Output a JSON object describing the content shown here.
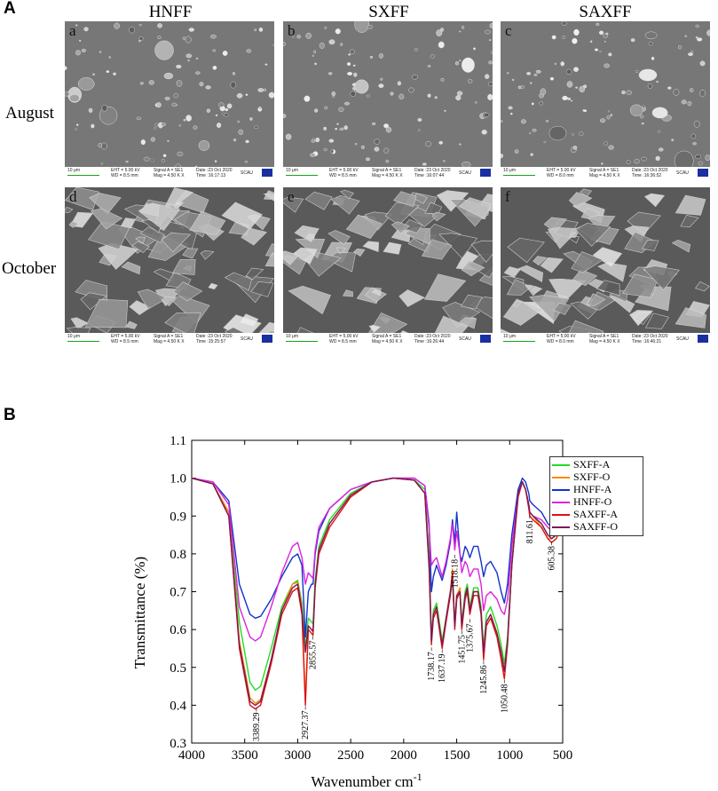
{
  "panel_a": {
    "letter": "A",
    "columns": [
      "HNFF",
      "SXFF",
      "SAXFF"
    ],
    "rows": [
      "August",
      "October"
    ],
    "images": [
      {
        "sub": "a",
        "scale": "10 μm",
        "eht": "EHT = 5.00 kV",
        "wd": "WD = 8.5 mm",
        "signal": "Signal A = SE1",
        "mag": "Mag = 4.50 K X",
        "date": "Date :23 Oct 2020",
        "time": "Time :16:17:13",
        "inst": "SCAU"
      },
      {
        "sub": "b",
        "scale": "10 μm",
        "eht": "EHT = 5.00 kV",
        "wd": "WD = 8.5 mm",
        "signal": "Signal A = SE1",
        "mag": "Mag = 4.50 K X",
        "date": "Date :23 Oct 2020",
        "time": "Time :16:07:44",
        "inst": "SCAU"
      },
      {
        "sub": "c",
        "scale": "10 μm",
        "eht": "EHT = 5.00 kV",
        "wd": "WD = 8.0 mm",
        "signal": "Signal A = SE1",
        "mag": "Mag = 4.50 K X",
        "date": "Date :23 Oct 2020",
        "time": "Time :16:36:52",
        "inst": "SCAU"
      },
      {
        "sub": "d",
        "scale": "10 μm",
        "eht": "EHT = 5.00 kV",
        "wd": "WD = 8.5 mm",
        "signal": "Signal A = SE1",
        "mag": "Mag = 4.50 K X",
        "date": "Date :23 Oct 2020",
        "time": "Time :15:25:57",
        "inst": "SCAU"
      },
      {
        "sub": "e",
        "scale": "10 μm",
        "eht": "EHT = 5.00 kV",
        "wd": "WD = 8.5 mm",
        "signal": "Signal A = SE1",
        "mag": "Mag = 4.50 K X",
        "date": "Date :23 Oct 2020",
        "time": "Time :16:26:44",
        "inst": "SCAU"
      },
      {
        "sub": "f",
        "scale": "10 μm",
        "eht": "EHT = 5.00 kV",
        "wd": "WD = 8.0 mm",
        "signal": "Signal A = SE1",
        "mag": "Mag = 4.50 K X",
        "date": "Date :23 Oct 2020",
        "time": "Time :16:46:21",
        "inst": "SCAU"
      }
    ]
  },
  "panel_b": {
    "letter": "B"
  },
  "chart_data": {
    "type": "line",
    "xlabel": "Wavenumber cm",
    "xlabel_sup": "-1",
    "ylabel": "Transmittance (%)",
    "xlim": [
      4000,
      500
    ],
    "ylim": [
      0.3,
      1.1
    ],
    "xticks": [
      4000,
      3500,
      3000,
      2500,
      2000,
      1500,
      1000,
      500
    ],
    "yticks": [
      0.3,
      0.4,
      0.5,
      0.6,
      0.7,
      0.8,
      0.9,
      1.0,
      1.1
    ],
    "ytick_labels": [
      "0.3",
      "0.4",
      "0.5",
      "0.6",
      "0.7",
      "0.8",
      "0.9",
      "1.0",
      "1.1"
    ],
    "legend_position": "top-right",
    "x": [
      4000,
      3800,
      3650,
      3550,
      3450,
      3400,
      3350,
      3250,
      3150,
      3050,
      3000,
      2960,
      2927,
      2900,
      2870,
      2855,
      2835,
      2800,
      2700,
      2500,
      2300,
      2100,
      1900,
      1800,
      1760,
      1738,
      1720,
      1690,
      1637,
      1600,
      1560,
      1540,
      1518,
      1500,
      1470,
      1452,
      1420,
      1400,
      1376,
      1340,
      1300,
      1270,
      1246,
      1220,
      1180,
      1120,
      1080,
      1050,
      1020,
      980,
      920,
      880,
      850,
      820,
      811,
      780,
      700,
      640,
      605,
      560,
      520,
      500
    ],
    "series": [
      {
        "name": "SXFF-A",
        "color": "#22dd22",
        "values": [
          1.0,
          0.985,
          0.91,
          0.62,
          0.46,
          0.44,
          0.45,
          0.55,
          0.66,
          0.72,
          0.73,
          0.67,
          0.55,
          0.63,
          0.62,
          0.615,
          0.73,
          0.82,
          0.89,
          0.96,
          0.99,
          1.0,
          0.995,
          0.97,
          0.8,
          0.58,
          0.65,
          0.67,
          0.57,
          0.63,
          0.69,
          0.73,
          0.61,
          0.68,
          0.71,
          0.62,
          0.7,
          0.72,
          0.66,
          0.71,
          0.71,
          0.66,
          0.55,
          0.64,
          0.66,
          0.61,
          0.56,
          0.51,
          0.58,
          0.78,
          0.96,
          0.99,
          0.97,
          0.93,
          0.91,
          0.9,
          0.88,
          0.85,
          0.84,
          0.85,
          0.88,
          0.92
        ]
      },
      {
        "name": "SXFF-O",
        "color": "#ff8800",
        "values": [
          1.0,
          0.985,
          0.91,
          0.57,
          0.42,
          0.405,
          0.415,
          0.52,
          0.65,
          0.72,
          0.725,
          0.66,
          0.41,
          0.61,
          0.6,
          0.595,
          0.72,
          0.81,
          0.88,
          0.955,
          0.99,
          1.0,
          0.995,
          0.96,
          0.78,
          0.57,
          0.64,
          0.66,
          0.56,
          0.63,
          0.7,
          0.76,
          0.62,
          0.69,
          0.71,
          0.61,
          0.69,
          0.71,
          0.65,
          0.7,
          0.7,
          0.65,
          0.53,
          0.62,
          0.64,
          0.59,
          0.54,
          0.49,
          0.57,
          0.77,
          0.96,
          0.99,
          0.97,
          0.93,
          0.91,
          0.9,
          0.87,
          0.84,
          0.84,
          0.85,
          0.88,
          0.92
        ]
      },
      {
        "name": "HNFF-A",
        "color": "#1133cc",
        "values": [
          1.0,
          0.99,
          0.94,
          0.72,
          0.64,
          0.63,
          0.635,
          0.68,
          0.74,
          0.79,
          0.8,
          0.77,
          0.58,
          0.7,
          0.72,
          0.72,
          0.8,
          0.86,
          0.92,
          0.97,
          0.99,
          1.0,
          1.0,
          0.98,
          0.88,
          0.7,
          0.74,
          0.77,
          0.73,
          0.77,
          0.83,
          0.89,
          0.83,
          0.91,
          0.8,
          0.78,
          0.82,
          0.81,
          0.79,
          0.82,
          0.82,
          0.78,
          0.74,
          0.77,
          0.78,
          0.75,
          0.7,
          0.67,
          0.72,
          0.85,
          0.97,
          1.0,
          0.99,
          0.96,
          0.94,
          0.93,
          0.91,
          0.88,
          0.87,
          0.88,
          0.91,
          0.94
        ]
      },
      {
        "name": "HNFF-O",
        "color": "#dd22dd",
        "values": [
          1.0,
          0.99,
          0.93,
          0.66,
          0.58,
          0.57,
          0.58,
          0.66,
          0.75,
          0.82,
          0.83,
          0.79,
          0.72,
          0.75,
          0.74,
          0.735,
          0.81,
          0.87,
          0.92,
          0.97,
          0.99,
          1.0,
          1.0,
          0.98,
          0.87,
          0.77,
          0.78,
          0.79,
          0.74,
          0.78,
          0.84,
          0.88,
          0.81,
          0.86,
          0.8,
          0.75,
          0.78,
          0.77,
          0.74,
          0.76,
          0.76,
          0.72,
          0.65,
          0.69,
          0.7,
          0.68,
          0.65,
          0.64,
          0.68,
          0.82,
          0.96,
          0.99,
          0.97,
          0.93,
          0.91,
          0.9,
          0.89,
          0.87,
          0.86,
          0.87,
          0.89,
          0.92
        ]
      },
      {
        "name": "SAXFF-A",
        "color": "#dd1111",
        "values": [
          1.0,
          0.985,
          0.9,
          0.55,
          0.4,
          0.39,
          0.4,
          0.51,
          0.64,
          0.7,
          0.71,
          0.64,
          0.4,
          0.6,
          0.59,
          0.585,
          0.71,
          0.8,
          0.87,
          0.95,
          0.99,
          1.0,
          0.995,
          0.96,
          0.76,
          0.56,
          0.63,
          0.65,
          0.55,
          0.62,
          0.69,
          0.75,
          0.6,
          0.68,
          0.7,
          0.6,
          0.68,
          0.7,
          0.64,
          0.69,
          0.69,
          0.64,
          0.52,
          0.61,
          0.63,
          0.58,
          0.52,
          0.47,
          0.56,
          0.77,
          0.95,
          0.99,
          0.97,
          0.92,
          0.9,
          0.89,
          0.87,
          0.84,
          0.83,
          0.84,
          0.87,
          0.91
        ]
      },
      {
        "name": "SAXFF-O",
        "color": "#7a1a5a",
        "values": [
          1.0,
          0.985,
          0.9,
          0.56,
          0.41,
          0.4,
          0.41,
          0.52,
          0.65,
          0.71,
          0.72,
          0.65,
          0.54,
          0.61,
          0.6,
          0.595,
          0.72,
          0.81,
          0.88,
          0.955,
          0.99,
          1.0,
          0.995,
          0.96,
          0.77,
          0.57,
          0.64,
          0.66,
          0.56,
          0.63,
          0.7,
          0.74,
          0.61,
          0.69,
          0.7,
          0.61,
          0.69,
          0.71,
          0.65,
          0.7,
          0.7,
          0.65,
          0.54,
          0.62,
          0.64,
          0.59,
          0.54,
          0.49,
          0.57,
          0.77,
          0.96,
          0.99,
          0.97,
          0.93,
          0.91,
          0.9,
          0.88,
          0.85,
          0.84,
          0.85,
          0.88,
          0.92
        ]
      }
    ],
    "annotations": [
      {
        "text": "3389.29",
        "x": 3389.29,
        "y": 0.395
      },
      {
        "text": "2927.37",
        "x": 2927.37,
        "y": 0.4
      },
      {
        "text": "2855.57",
        "x": 2855.57,
        "y": 0.585
      },
      {
        "text": "1738.17",
        "x": 1738.17,
        "y": 0.555
      },
      {
        "text": "1637.19",
        "x": 1637.19,
        "y": 0.55
      },
      {
        "text": "1518.18",
        "x": 1518.18,
        "y": 0.8
      },
      {
        "text": "1451.75",
        "x": 1451.75,
        "y": 0.6
      },
      {
        "text": "1375.67",
        "x": 1375.67,
        "y": 0.63
      },
      {
        "text": "1245.86",
        "x": 1245.86,
        "y": 0.52
      },
      {
        "text": "1050.48",
        "x": 1050.48,
        "y": 0.47
      },
      {
        "text": "811.61",
        "x": 811.61,
        "y": 0.905
      },
      {
        "text": "605.38",
        "x": 605.38,
        "y": 0.835
      }
    ]
  }
}
